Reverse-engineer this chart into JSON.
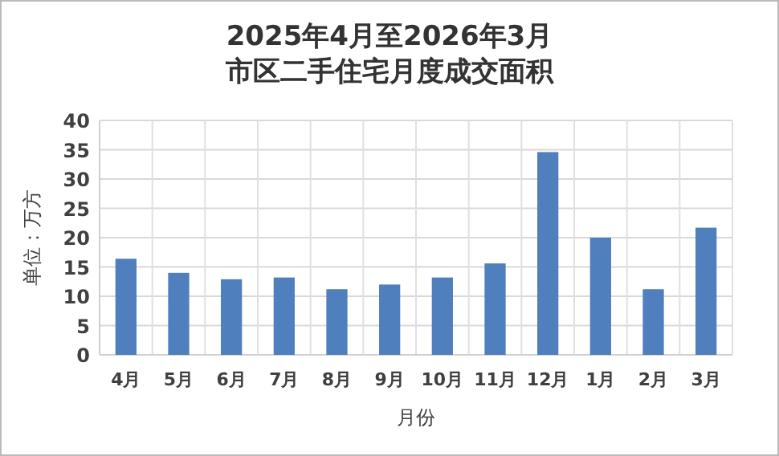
{
  "chart_data": {
    "type": "bar",
    "title": "2025年4月至2026年3月",
    "subtitle": "市区二手住宅月度成交面积",
    "xlabel": "月份",
    "ylabel": "单位：万方",
    "categories": [
      "4月",
      "5月",
      "6月",
      "7月",
      "8月",
      "9月",
      "10月",
      "11月",
      "12月",
      "1月",
      "2月",
      "3月"
    ],
    "values": [
      16.4,
      14.0,
      12.9,
      13.2,
      11.2,
      12.0,
      13.2,
      15.6,
      34.6,
      20.0,
      11.2,
      21.7
    ],
    "color": "#4f7fbd",
    "ylim": [
      0,
      40
    ],
    "yticks": [
      0,
      5,
      10,
      15,
      20,
      25,
      30,
      35,
      40
    ],
    "grid": true
  }
}
